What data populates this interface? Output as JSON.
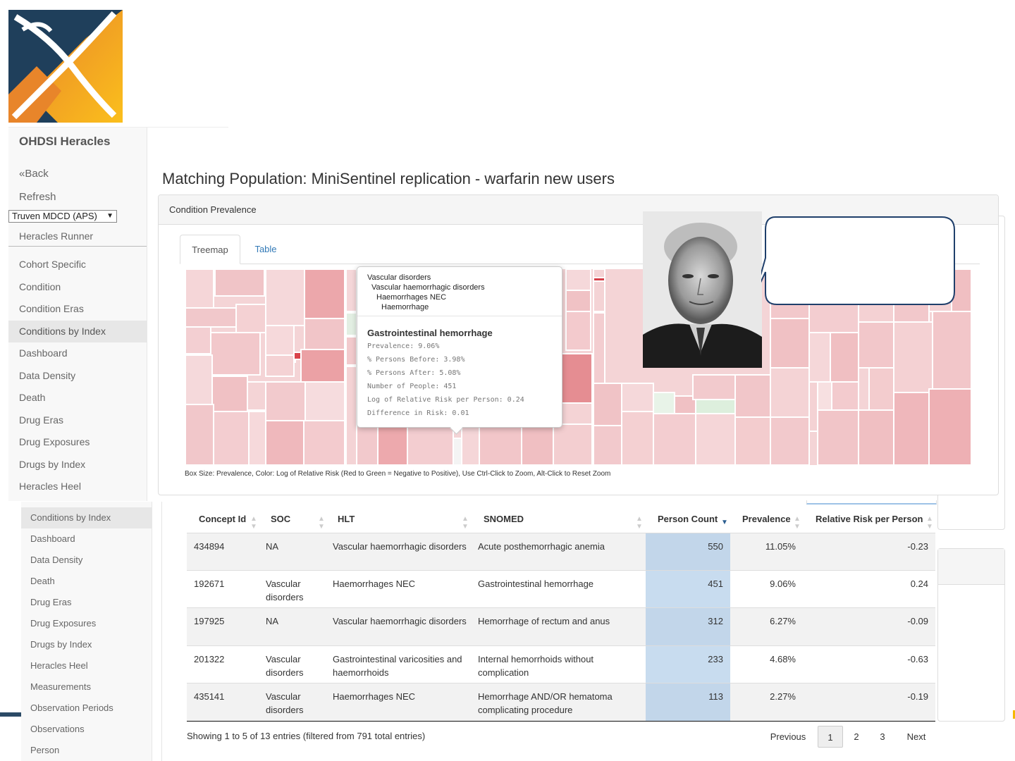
{
  "app": {
    "brand": "OHDSI Heracles",
    "back_label": "«Back",
    "refresh_label": "Refresh",
    "source_select": "Truven MDCD (APS)",
    "runner_label": "Heracles Runner"
  },
  "sidebar1": {
    "items": [
      {
        "label": "Cohort Specific"
      },
      {
        "label": "Condition"
      },
      {
        "label": "Condition Eras"
      },
      {
        "label": "Conditions by Index"
      },
      {
        "label": "Dashboard"
      },
      {
        "label": "Data Density"
      },
      {
        "label": "Death"
      },
      {
        "label": "Drug Eras"
      },
      {
        "label": "Drug Exposures"
      },
      {
        "label": "Drugs by Index"
      },
      {
        "label": "Heracles Heel"
      }
    ],
    "active": "Conditions by Index"
  },
  "sidebar2": {
    "items": [
      {
        "label": "Conditions by Index"
      },
      {
        "label": "Dashboard"
      },
      {
        "label": "Data Density"
      },
      {
        "label": "Death"
      },
      {
        "label": "Drug Eras"
      },
      {
        "label": "Drug Exposures"
      },
      {
        "label": "Drugs by Index"
      },
      {
        "label": "Heracles Heel"
      },
      {
        "label": "Measurements"
      },
      {
        "label": "Observation Periods"
      },
      {
        "label": "Observations"
      },
      {
        "label": "Person"
      }
    ]
  },
  "page": {
    "title": "Matching Population: MiniSentinel replication - warfarin new users"
  },
  "panel": {
    "heading": "Condition Prevalence",
    "tabs": [
      {
        "label": "Treemap"
      },
      {
        "label": "Table"
      }
    ],
    "caption": "Box Size: Prevalence, Color: Log of Relative Risk (Red to Green = Negative to Positive), Use Ctrl-Click to Zoom, Alt-Click to Reset Zoom"
  },
  "tooltip": {
    "path": [
      "Vascular disorders",
      "Vascular haemorrhagic disorders",
      "Haemorrhages NEC",
      "Haemorrhage"
    ],
    "title": "Gastrointestinal hemorrhage",
    "stats": [
      "Prevalence: 9.06%",
      "% Persons Before: 3.98%",
      "% Persons After: 5.08%",
      "Number of People: 451",
      "Log of Relative Risk per Person: 0.24",
      "Difference in Risk: 0.01"
    ]
  },
  "table": {
    "columns": [
      "Concept Id",
      "SOC",
      "HLT",
      "SNOMED",
      "Person Count",
      "Prevalence",
      "Relative Risk per Person"
    ],
    "rows": [
      {
        "concept_id": "434894",
        "soc": "NA",
        "hlt": "Vascular haemorrhagic disorders",
        "snomed": "Acute posthemorrhagic anemia",
        "count": "550",
        "prevalence": "11.05%",
        "rr": "-0.23"
      },
      {
        "concept_id": "192671",
        "soc": "Vascular disorders",
        "hlt": "Haemorrhages NEC",
        "snomed": "Gastrointestinal hemorrhage",
        "count": "451",
        "prevalence": "9.06%",
        "rr": "0.24"
      },
      {
        "concept_id": "197925",
        "soc": "NA",
        "hlt": "Vascular haemorrhagic disorders",
        "snomed": "Hemorrhage of rectum and anus",
        "count": "312",
        "prevalence": "6.27%",
        "rr": "-0.09"
      },
      {
        "concept_id": "201322",
        "soc": "Vascular disorders",
        "hlt": "Gastrointestinal varicosities and haemorrhoids",
        "snomed": "Internal hemorrhoids without complication",
        "count": "233",
        "prevalence": "4.68%",
        "rr": "-0.63"
      },
      {
        "concept_id": "435141",
        "soc": "Vascular disorders",
        "hlt": "Haemorrhages NEC",
        "snomed": "Hemorrhage AND/OR hematoma complicating procedure",
        "count": "113",
        "prevalence": "2.27%",
        "rr": "-0.19"
      }
    ],
    "info": "Showing 1 to 5 of 13 entries (filtered from 791 total entries)",
    "pagination": {
      "previous": "Previous",
      "pages": [
        "1",
        "2",
        "3"
      ],
      "current": "1",
      "next": "Next"
    }
  },
  "colors": {
    "logo_navy": "#1f3f5b",
    "logo_orange": "#f39c1f",
    "link_blue": "#337ab7",
    "highlight_column": "#c8dcef",
    "treemap_red": "#e8a0a4",
    "treemap_green": "#d4ecd4"
  },
  "icons": [
    "logo-icon",
    "select-arrow-icon",
    "sort-icon",
    "sort-desc-icon"
  ]
}
